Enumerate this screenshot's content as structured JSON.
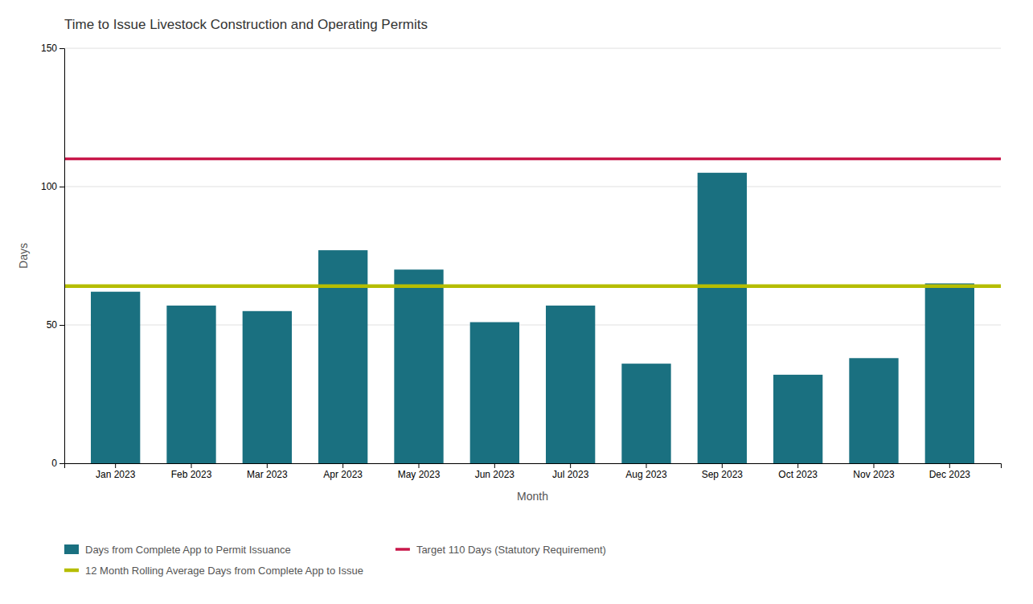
{
  "chart_data": {
    "type": "bar",
    "title": "Time to Issue Livestock Construction and Operating Permits",
    "xlabel": "Month",
    "ylabel": "Days",
    "categories": [
      "Jan 2023",
      "Feb 2023",
      "Mar 2023",
      "Apr 2023",
      "May 2023",
      "Jun 2023",
      "Jul 2023",
      "Aug 2023",
      "Sep 2023",
      "Oct 2023",
      "Nov 2023",
      "Dec 2023"
    ],
    "series": [
      {
        "name": "Days from Complete App to Permit Issuance",
        "color": "#1a7080",
        "values": [
          62,
          57,
          55,
          77,
          70,
          51,
          57,
          36,
          105,
          32,
          38,
          65
        ]
      }
    ],
    "reference_lines": [
      {
        "name": "12 Month Rolling Average Days from Complete App to Issue",
        "color": "#b5bd00",
        "value": 64
      },
      {
        "name": "Target 110 Days (Statutory Requirement)",
        "color": "#c8174a",
        "value": 110
      }
    ],
    "ylim": [
      0,
      150
    ],
    "yticks": [
      0,
      50,
      100,
      150
    ],
    "grid": true,
    "legend": "bottom"
  }
}
